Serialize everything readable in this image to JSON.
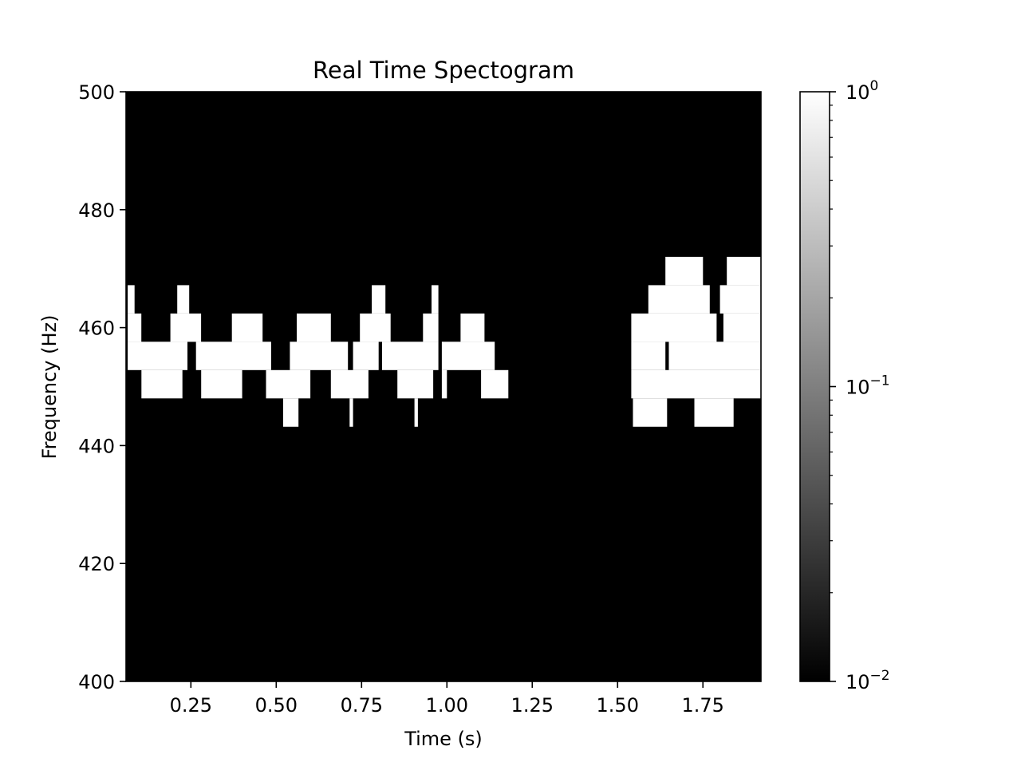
{
  "chart_data": {
    "type": "heatmap",
    "title": "Real Time Spectogram",
    "xlabel": "Time (s)",
    "ylabel": "Frequency (Hz)",
    "xlim": [
      0.06,
      1.92
    ],
    "ylim": [
      400,
      500
    ],
    "xticks": [
      {
        "value": 0.25,
        "label": "0.25"
      },
      {
        "value": 0.5,
        "label": "0.50"
      },
      {
        "value": 0.75,
        "label": "0.75"
      },
      {
        "value": 1.0,
        "label": "1.00"
      },
      {
        "value": 1.25,
        "label": "1.25"
      },
      {
        "value": 1.5,
        "label": "1.50"
      },
      {
        "value": 1.75,
        "label": "1.75"
      }
    ],
    "yticks": [
      {
        "value": 400,
        "label": "400"
      },
      {
        "value": 420,
        "label": "420"
      },
      {
        "value": 440,
        "label": "440"
      },
      {
        "value": 460,
        "label": "460"
      },
      {
        "value": 480,
        "label": "480"
      },
      {
        "value": 500,
        "label": "500"
      }
    ],
    "colormap": "gray",
    "background_color": "#000000",
    "colorbar": {
      "scale": "log",
      "min": 0.01,
      "max": 1,
      "ticks": [
        {
          "value": 0.01,
          "base": "10",
          "exp": "−2"
        },
        {
          "value": 0.1,
          "base": "10",
          "exp": "−1"
        },
        {
          "value": 1,
          "base": "10",
          "exp": "0"
        }
      ]
    },
    "cells": [
      [
        0.065,
        0.085,
        462.4,
        467.2,
        1.0
      ],
      [
        0.21,
        0.245,
        462.4,
        467.2,
        1.0
      ],
      [
        0.78,
        0.82,
        462.4,
        467.2,
        1.0
      ],
      [
        0.955,
        0.975,
        462.4,
        467.2,
        1.0
      ],
      [
        1.64,
        1.75,
        467.2,
        472.0,
        1.0
      ],
      [
        1.82,
        1.92,
        467.2,
        472.0,
        1.0
      ],
      [
        1.59,
        1.77,
        462.4,
        467.2,
        1.0
      ],
      [
        1.8,
        1.92,
        462.4,
        467.2,
        1.0
      ],
      [
        0.065,
        0.105,
        457.6,
        462.4,
        1.0
      ],
      [
        0.19,
        0.28,
        457.6,
        462.4,
        1.0
      ],
      [
        0.37,
        0.46,
        457.6,
        462.4,
        1.0
      ],
      [
        0.56,
        0.66,
        457.6,
        462.4,
        1.0
      ],
      [
        0.745,
        0.835,
        457.6,
        462.4,
        1.0
      ],
      [
        0.93,
        0.975,
        457.6,
        462.4,
        1.0
      ],
      [
        1.04,
        1.11,
        457.6,
        462.4,
        1.0
      ],
      [
        1.54,
        1.79,
        457.6,
        462.4,
        1.0
      ],
      [
        1.81,
        1.92,
        457.6,
        462.4,
        1.0
      ],
      [
        0.065,
        0.24,
        452.8,
        457.6,
        1.0
      ],
      [
        0.265,
        0.485,
        452.8,
        457.6,
        1.0
      ],
      [
        0.54,
        0.71,
        452.8,
        457.6,
        1.0
      ],
      [
        0.725,
        0.8,
        452.8,
        457.6,
        1.0
      ],
      [
        0.81,
        0.975,
        452.8,
        457.6,
        1.0
      ],
      [
        0.985,
        1.14,
        452.8,
        457.6,
        1.0
      ],
      [
        1.54,
        1.64,
        452.8,
        457.6,
        1.0
      ],
      [
        1.65,
        1.92,
        452.8,
        457.6,
        1.0
      ],
      [
        0.105,
        0.225,
        448.0,
        452.8,
        1.0
      ],
      [
        0.28,
        0.4,
        448.0,
        452.8,
        1.0
      ],
      [
        0.47,
        0.6,
        448.0,
        452.8,
        1.0
      ],
      [
        0.66,
        0.77,
        448.0,
        452.8,
        1.0
      ],
      [
        0.855,
        0.96,
        448.0,
        452.8,
        1.0
      ],
      [
        0.985,
        1.0,
        448.0,
        452.8,
        1.0
      ],
      [
        1.1,
        1.18,
        448.0,
        452.8,
        1.0
      ],
      [
        1.54,
        1.92,
        448.0,
        452.8,
        1.0
      ],
      [
        0.52,
        0.565,
        443.2,
        448.0,
        1.0
      ],
      [
        0.715,
        0.725,
        443.2,
        448.0,
        1.0
      ],
      [
        0.905,
        0.915,
        443.2,
        448.0,
        1.0
      ],
      [
        1.545,
        1.645,
        443.2,
        448.0,
        1.0
      ],
      [
        1.725,
        1.84,
        443.2,
        448.0,
        1.0
      ]
    ]
  }
}
